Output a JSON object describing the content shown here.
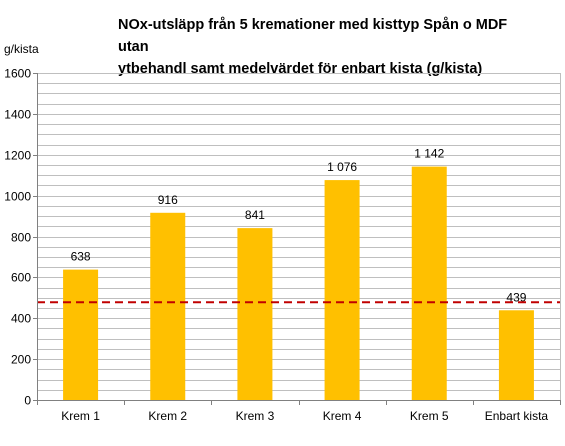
{
  "chart_data": {
    "type": "bar",
    "title_lines": [
      "NOx-utsläpp från 5 kremationer med kisttyp Spån o MDF utan",
      "ytbehandl samt medelvärdet för enbart kista (g/kista)"
    ],
    "ylabel": "g/kista",
    "xlabel": "",
    "categories": [
      "Krem 1",
      "Krem 2",
      "Krem 3",
      "Krem 4",
      "Krem 5",
      "Enbart kista"
    ],
    "values": [
      638,
      916,
      841,
      1076,
      1142,
      439
    ],
    "value_labels": [
      "638",
      "916",
      "841",
      "1 076",
      "1 142",
      "439"
    ],
    "ylim": [
      0,
      1600
    ],
    "yticks": [
      0,
      200,
      400,
      600,
      800,
      1000,
      1200,
      1400,
      1600
    ],
    "ytick_labels": [
      "0",
      "200",
      "400",
      "600",
      "800",
      "1000",
      "1200",
      "1400",
      "1600"
    ],
    "minor_grid_step": 50,
    "grid": true,
    "reference_line": {
      "value": 439,
      "color": "#c00000",
      "style": "dashed"
    },
    "bar_color": "#ffc000",
    "grid_color": "#bfbfbf"
  }
}
